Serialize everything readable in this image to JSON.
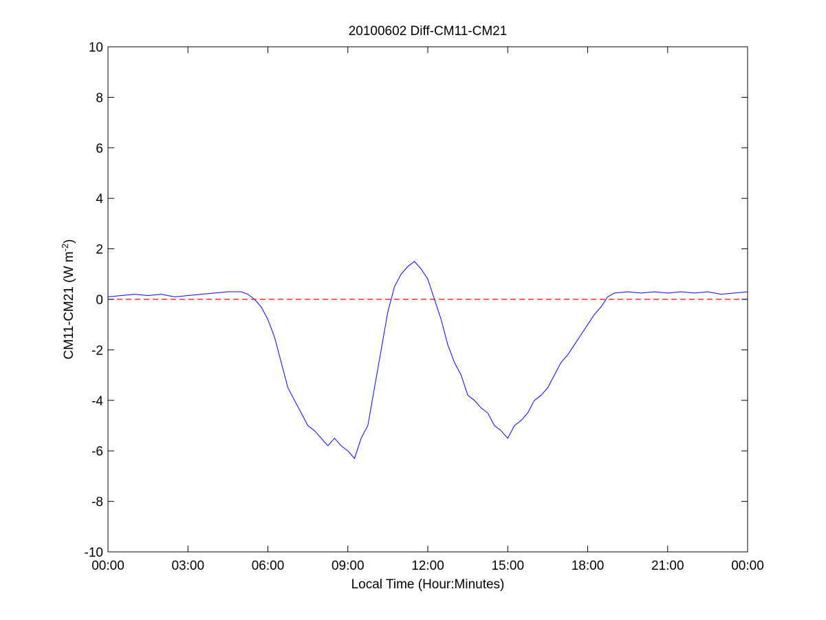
{
  "chart_data": {
    "type": "line",
    "title": "20100602 Diff-CM11-CM21",
    "xlabel": "Local Time (Hour:Minutes)",
    "ylabel": "CM11-CM21 (W m",
    "ylabel_sup": "-2",
    "ylabel_close": ")",
    "x_unit": "hours",
    "xlim": [
      0,
      24
    ],
    "ylim": [
      -10,
      10
    ],
    "x_ticks": [
      0,
      3,
      6,
      9,
      12,
      15,
      18,
      21,
      24
    ],
    "x_tick_labels": [
      "00:00",
      "03:00",
      "06:00",
      "09:00",
      "12:00",
      "15:00",
      "18:00",
      "21:00",
      "00:00"
    ],
    "y_ticks": [
      -10,
      -8,
      -6,
      -4,
      -2,
      0,
      2,
      4,
      6,
      8,
      10
    ],
    "y_tick_labels": [
      "-10",
      "-8",
      "-6",
      "-4",
      "-2",
      "0",
      "2",
      "4",
      "6",
      "8",
      "10"
    ],
    "grid": false,
    "series": [
      {
        "color": "#0000ff",
        "style": "solid",
        "x": [
          0,
          0.5,
          1,
          1.5,
          2,
          2.5,
          3,
          3.5,
          4,
          4.5,
          5,
          5.25,
          5.5,
          5.75,
          6,
          6.25,
          6.5,
          6.75,
          7,
          7.25,
          7.5,
          7.75,
          8,
          8.25,
          8.5,
          8.75,
          9,
          9.25,
          9.5,
          9.75,
          10,
          10.25,
          10.5,
          10.75,
          11,
          11.25,
          11.5,
          11.75,
          12,
          12.25,
          12.5,
          12.75,
          13,
          13.25,
          13.5,
          13.75,
          14,
          14.25,
          14.5,
          14.75,
          15,
          15.25,
          15.5,
          15.75,
          16,
          16.25,
          16.5,
          16.75,
          17,
          17.25,
          17.5,
          17.75,
          18,
          18.25,
          18.5,
          18.75,
          19,
          19.5,
          20,
          20.5,
          21,
          21.5,
          22,
          22.5,
          23,
          23.5,
          24
        ],
        "y": [
          0.1,
          0.15,
          0.2,
          0.15,
          0.2,
          0.1,
          0.15,
          0.2,
          0.25,
          0.3,
          0.3,
          0.2,
          0.0,
          -0.3,
          -0.8,
          -1.5,
          -2.5,
          -3.5,
          -4.0,
          -4.5,
          -5.0,
          -5.2,
          -5.5,
          -5.8,
          -5.5,
          -5.8,
          -6.0,
          -6.3,
          -5.5,
          -5.0,
          -3.5,
          -2.0,
          -0.5,
          0.5,
          1.0,
          1.3,
          1.5,
          1.2,
          0.8,
          0.0,
          -0.8,
          -1.8,
          -2.5,
          -3.0,
          -3.8,
          -4.0,
          -4.3,
          -4.5,
          -5.0,
          -5.2,
          -5.5,
          -5.0,
          -4.8,
          -4.5,
          -4.0,
          -3.8,
          -3.5,
          -3.0,
          -2.5,
          -2.2,
          -1.8,
          -1.4,
          -1.0,
          -0.6,
          -0.3,
          0.1,
          0.25,
          0.3,
          0.25,
          0.3,
          0.25,
          0.3,
          0.25,
          0.3,
          0.2,
          0.25,
          0.3
        ]
      },
      {
        "color": "#ff0000",
        "style": "dashed",
        "x": [
          0,
          24
        ],
        "y": [
          0,
          0
        ]
      }
    ]
  }
}
